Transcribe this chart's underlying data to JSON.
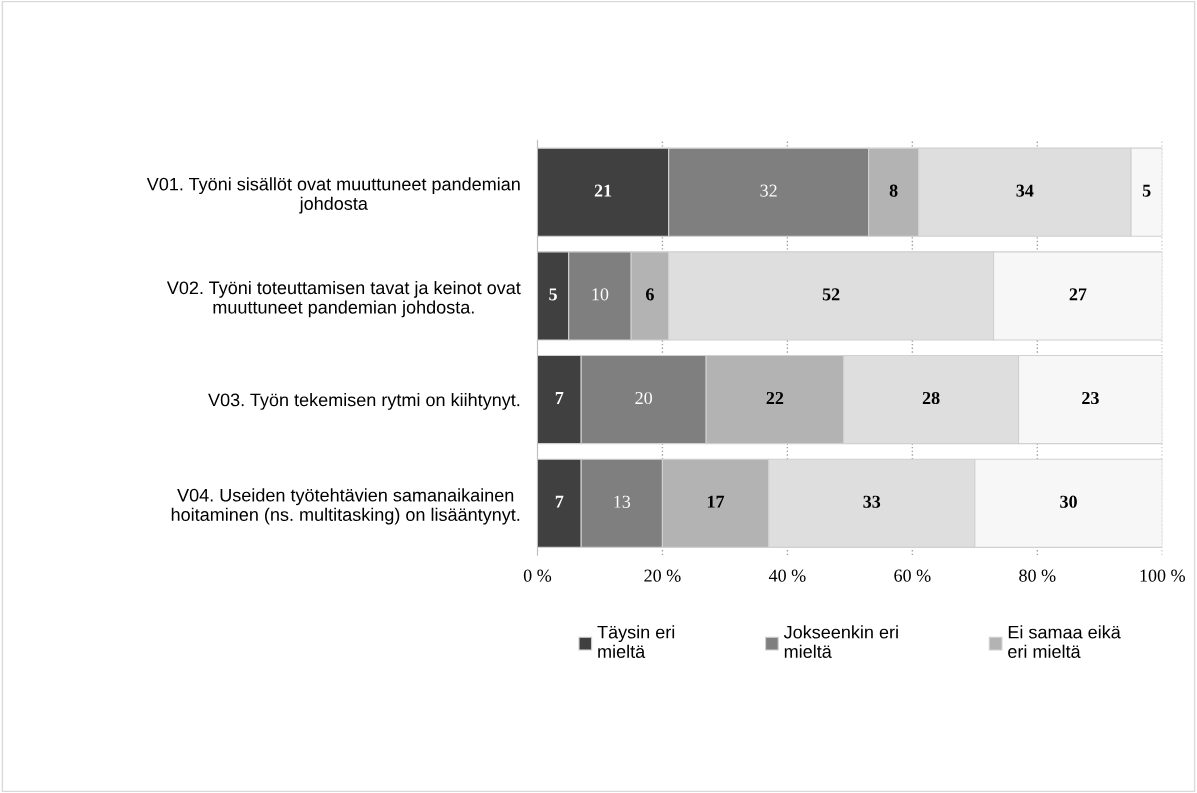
{
  "chart_data": {
    "type": "bar",
    "orientation": "horizontal",
    "stacked": true,
    "categories": [
      "V01. Työni sisällöt ovat muuttuneet pandemian\njohdosta",
      "V02. Työni toteuttamisen tavat ja keinot ovat\nmuuttuneet pandemian johdosta.",
      "V03. Työn tekemisen rytmi on kiihtynyt.",
      "V04. Useiden työtehtävien samanaikainen\nhoitaminen (ns. multitasking) on lisääntynyt."
    ],
    "series": [
      {
        "name": "Täysin eri\nmieltä",
        "color": "#404040",
        "values": [
          21,
          5,
          7,
          7
        ]
      },
      {
        "name": "Jokseenkin eri\nmieltä",
        "color": "#7f7f7f",
        "values": [
          32,
          10,
          20,
          13
        ]
      },
      {
        "name": "Ei samaa eikä\neri mieltä",
        "color": "#b3b3b3",
        "values": [
          8,
          6,
          22,
          17
        ]
      },
      {
        "color": "#dedede",
        "values": [
          34,
          52,
          28,
          33
        ]
      },
      {
        "color": "#f7f7f7",
        "values": [
          5,
          27,
          23,
          30
        ]
      }
    ],
    "xlim": [
      0,
      100
    ],
    "xticks": [
      {
        "value": 0,
        "label": "0 %"
      },
      {
        "value": 20,
        "label": "20 %"
      },
      {
        "value": 40,
        "label": "40 %"
      },
      {
        "value": 60,
        "label": "60 %"
      },
      {
        "value": 80,
        "label": "80 %"
      },
      {
        "value": 100,
        "label": "100 %"
      }
    ],
    "grid": "x",
    "legend": "bottom",
    "data_labels": true
  }
}
